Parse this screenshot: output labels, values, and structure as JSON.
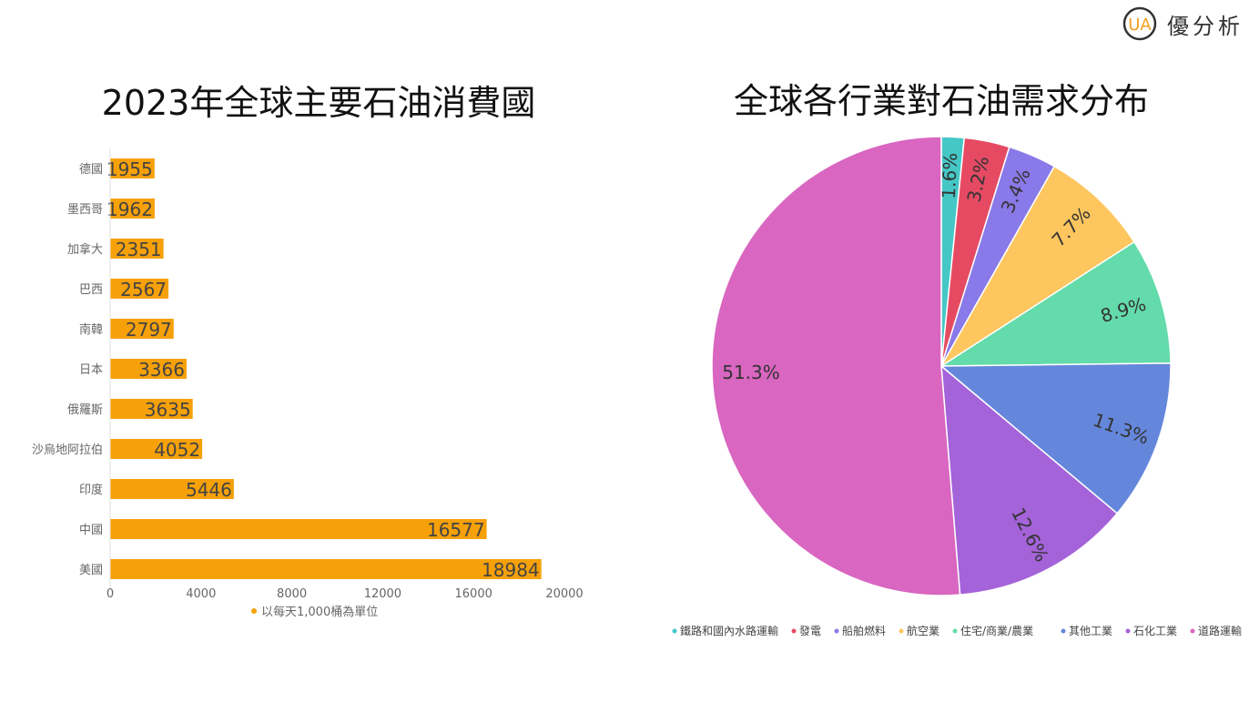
{
  "brand": {
    "logo_text": "UA",
    "name": "優分析"
  },
  "chart_data": [
    {
      "type": "bar",
      "orientation": "horizontal",
      "title": "2023年全球主要石油消費國",
      "categories": [
        "德國",
        "墨西哥",
        "加拿大",
        "巴西",
        "南韓",
        "日本",
        "俄羅斯",
        "沙烏地阿拉伯",
        "印度",
        "中國",
        "美國"
      ],
      "values": [
        1955,
        1962,
        2351,
        2567,
        2797,
        3366,
        3635,
        4052,
        5446,
        16577,
        18984
      ],
      "xlim": [
        0,
        20000
      ],
      "xticks": [
        0,
        4000,
        8000,
        12000,
        16000,
        20000
      ],
      "legend": [
        "以每天1,000桶為單位"
      ],
      "legend_position": "bottom",
      "color": "#f6a10a",
      "grid": false
    },
    {
      "type": "pie",
      "title": "全球各行業對石油需求分布",
      "labels": [
        "鐵路和國內水路運輸",
        "發電",
        "船舶燃料",
        "航空業",
        "住宅/商業/農業",
        "其他工業",
        "石化工業",
        "道路運輸"
      ],
      "values": [
        1.6,
        3.2,
        3.4,
        7.7,
        8.9,
        11.3,
        12.6,
        51.3
      ],
      "display_labels": [
        "1.6%",
        "3.2%",
        "3.4%",
        "7.7%",
        "8.9%",
        "11.3%",
        "12.6%",
        "51.3%"
      ],
      "colors": [
        "#45c7c6",
        "#e64a63",
        "#8a79e8",
        "#fdc65e",
        "#63dbaa",
        "#6587db",
        "#a463d9",
        "#d966c0"
      ],
      "legend_position": "bottom"
    }
  ]
}
